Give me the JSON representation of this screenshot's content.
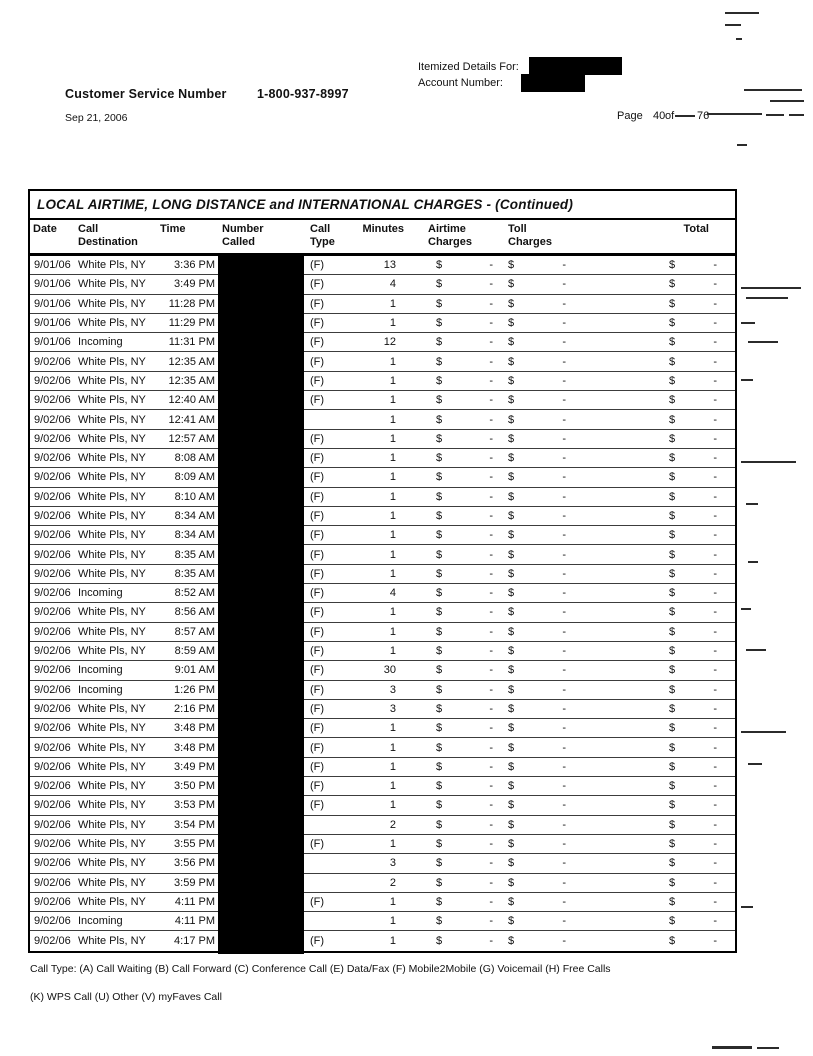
{
  "header": {
    "itemized_details_label": "Itemized Details For:",
    "account_number_label": "Account Number:",
    "customer_service_label": "Customer Service Number",
    "customer_service_number": "1-800-937-8997",
    "statement_date": "Sep 21, 2006",
    "page_label": "Page",
    "page_number": "40",
    "of_label": "of",
    "total_pages": "76"
  },
  "table": {
    "title": "LOCAL AIRTIME, LONG DISTANCE and INTERNATIONAL CHARGES  - (Continued)",
    "currency_symbol": "$",
    "no_charge_value": "-",
    "number_called_redacted": true,
    "columns": [
      {
        "line1": "Date",
        "line2": ""
      },
      {
        "line1": "Call",
        "line2": "Destination"
      },
      {
        "line1": "Time",
        "line2": ""
      },
      {
        "line1": "Number",
        "line2": "Called"
      },
      {
        "line1": "Call",
        "line2": "Type"
      },
      {
        "line1": "Minutes",
        "line2": ""
      },
      {
        "line1": "Airtime",
        "line2": "Charges"
      },
      {
        "line1": "Toll",
        "line2": "Charges"
      },
      {
        "line1": "Total",
        "line2": ""
      }
    ],
    "rows": [
      {
        "date": "9/01/06",
        "destination": "White Pls, NY",
        "time": "3:36 PM",
        "call_type": "(F)",
        "minutes": "13",
        "airtime": "-",
        "toll": "-",
        "total": "-"
      },
      {
        "date": "9/01/06",
        "destination": "White Pls, NY",
        "time": "3:49 PM",
        "call_type": "(F)",
        "minutes": "4",
        "airtime": "-",
        "toll": "-",
        "total": "-"
      },
      {
        "date": "9/01/06",
        "destination": "White Pls, NY",
        "time": "11:28 PM",
        "call_type": "(F)",
        "minutes": "1",
        "airtime": "-",
        "toll": "-",
        "total": "-"
      },
      {
        "date": "9/01/06",
        "destination": "White Pls, NY",
        "time": "11:29 PM",
        "call_type": "(F)",
        "minutes": "1",
        "airtime": "-",
        "toll": "-",
        "total": "-"
      },
      {
        "date": "9/01/06",
        "destination": "Incoming",
        "time": "11:31 PM",
        "call_type": "(F)",
        "minutes": "12",
        "airtime": "-",
        "toll": "-",
        "total": "-"
      },
      {
        "date": "9/02/06",
        "destination": "White Pls, NY",
        "time": "12:35 AM",
        "call_type": "(F)",
        "minutes": "1",
        "airtime": "-",
        "toll": "-",
        "total": "-"
      },
      {
        "date": "9/02/06",
        "destination": "White Pls, NY",
        "time": "12:35 AM",
        "call_type": "(F)",
        "minutes": "1",
        "airtime": "-",
        "toll": "-",
        "total": "-"
      },
      {
        "date": "9/02/06",
        "destination": "White Pls, NY",
        "time": "12:40 AM",
        "call_type": "(F)",
        "minutes": "1",
        "airtime": "-",
        "toll": "-",
        "total": "-"
      },
      {
        "date": "9/02/06",
        "destination": "White Pls, NY",
        "time": "12:41 AM",
        "call_type": "",
        "minutes": "1",
        "airtime": "-",
        "toll": "-",
        "total": "-"
      },
      {
        "date": "9/02/06",
        "destination": "White Pls, NY",
        "time": "12:57 AM",
        "call_type": "(F)",
        "minutes": "1",
        "airtime": "-",
        "toll": "-",
        "total": "-"
      },
      {
        "date": "9/02/06",
        "destination": "White Pls, NY",
        "time": "8:08 AM",
        "call_type": "(F)",
        "minutes": "1",
        "airtime": "-",
        "toll": "-",
        "total": "-"
      },
      {
        "date": "9/02/06",
        "destination": "White Pls, NY",
        "time": "8:09 AM",
        "call_type": "(F)",
        "minutes": "1",
        "airtime": "-",
        "toll": "-",
        "total": "-"
      },
      {
        "date": "9/02/06",
        "destination": "White Pls, NY",
        "time": "8:10 AM",
        "call_type": "(F)",
        "minutes": "1",
        "airtime": "-",
        "toll": "-",
        "total": "-"
      },
      {
        "date": "9/02/06",
        "destination": "White Pls, NY",
        "time": "8:34 AM",
        "call_type": "(F)",
        "minutes": "1",
        "airtime": "-",
        "toll": "-",
        "total": "-"
      },
      {
        "date": "9/02/06",
        "destination": "White Pls, NY",
        "time": "8:34 AM",
        "call_type": "(F)",
        "minutes": "1",
        "airtime": "-",
        "toll": "-",
        "total": "-"
      },
      {
        "date": "9/02/06",
        "destination": "White Pls, NY",
        "time": "8:35 AM",
        "call_type": "(F)",
        "minutes": "1",
        "airtime": "-",
        "toll": "-",
        "total": "-"
      },
      {
        "date": "9/02/06",
        "destination": "White Pls, NY",
        "time": "8:35 AM",
        "call_type": "(F)",
        "minutes": "1",
        "airtime": "-",
        "toll": "-",
        "total": "-"
      },
      {
        "date": "9/02/06",
        "destination": "Incoming",
        "time": "8:52 AM",
        "call_type": "(F)",
        "minutes": "4",
        "airtime": "-",
        "toll": "-",
        "total": "-"
      },
      {
        "date": "9/02/06",
        "destination": "White Pls, NY",
        "time": "8:56 AM",
        "call_type": "(F)",
        "minutes": "1",
        "airtime": "-",
        "toll": "-",
        "total": "-"
      },
      {
        "date": "9/02/06",
        "destination": "White Pls, NY",
        "time": "8:57 AM",
        "call_type": "(F)",
        "minutes": "1",
        "airtime": "-",
        "toll": "-",
        "total": "-"
      },
      {
        "date": "9/02/06",
        "destination": "White Pls, NY",
        "time": "8:59 AM",
        "call_type": "(F)",
        "minutes": "1",
        "airtime": "-",
        "toll": "-",
        "total": "-"
      },
      {
        "date": "9/02/06",
        "destination": "Incoming",
        "time": "9:01 AM",
        "call_type": "(F)",
        "minutes": "30",
        "airtime": "-",
        "toll": "-",
        "total": "-"
      },
      {
        "date": "9/02/06",
        "destination": "Incoming",
        "time": "1:26 PM",
        "call_type": "(F)",
        "minutes": "3",
        "airtime": "-",
        "toll": "-",
        "total": "-"
      },
      {
        "date": "9/02/06",
        "destination": "White Pls, NY",
        "time": "2:16 PM",
        "call_type": "(F)",
        "minutes": "3",
        "airtime": "-",
        "toll": "-",
        "total": "-"
      },
      {
        "date": "9/02/06",
        "destination": "White Pls, NY",
        "time": "3:48 PM",
        "call_type": "(F)",
        "minutes": "1",
        "airtime": "-",
        "toll": "-",
        "total": "-"
      },
      {
        "date": "9/02/06",
        "destination": "White Pls, NY",
        "time": "3:48 PM",
        "call_type": "(F)",
        "minutes": "1",
        "airtime": "-",
        "toll": "-",
        "total": "-"
      },
      {
        "date": "9/02/06",
        "destination": "White Pls, NY",
        "time": "3:49 PM",
        "call_type": "(F)",
        "minutes": "1",
        "airtime": "-",
        "toll": "-",
        "total": "-"
      },
      {
        "date": "9/02/06",
        "destination": "White Pls, NY",
        "time": "3:50 PM",
        "call_type": "(F)",
        "minutes": "1",
        "airtime": "-",
        "toll": "-",
        "total": "-"
      },
      {
        "date": "9/02/06",
        "destination": "White Pls, NY",
        "time": "3:53 PM",
        "call_type": "(F)",
        "minutes": "1",
        "airtime": "-",
        "toll": "-",
        "total": "-"
      },
      {
        "date": "9/02/06",
        "destination": "White Pls, NY",
        "time": "3:54 PM",
        "call_type": "",
        "minutes": "2",
        "airtime": "-",
        "toll": "-",
        "total": "-"
      },
      {
        "date": "9/02/06",
        "destination": "White Pls, NY",
        "time": "3:55 PM",
        "call_type": "(F)",
        "minutes": "1",
        "airtime": "-",
        "toll": "-",
        "total": "-"
      },
      {
        "date": "9/02/06",
        "destination": "White Pls, NY",
        "time": "3:56 PM",
        "call_type": "",
        "minutes": "3",
        "airtime": "-",
        "toll": "-",
        "total": "-"
      },
      {
        "date": "9/02/06",
        "destination": "White Pls, NY",
        "time": "3:59 PM",
        "call_type": "",
        "minutes": "2",
        "airtime": "-",
        "toll": "-",
        "total": "-"
      },
      {
        "date": "9/02/06",
        "destination": "White Pls, NY",
        "time": "4:11 PM",
        "call_type": "(F)",
        "minutes": "1",
        "airtime": "-",
        "toll": "-",
        "total": "-"
      },
      {
        "date": "9/02/06",
        "destination": "Incoming",
        "time": "4:11 PM",
        "call_type": "",
        "minutes": "1",
        "airtime": "-",
        "toll": "-",
        "total": "-"
      },
      {
        "date": "9/02/06",
        "destination": "White Pls, NY",
        "time": "4:17 PM",
        "call_type": "(F)",
        "minutes": "1",
        "airtime": "-",
        "toll": "-",
        "total": "-"
      }
    ]
  },
  "footer": {
    "legend_line1": "Call Type: (A) Call Waiting (B) Call Forward (C) Conference Call (E) Data/Fax (F) Mobile2Mobile (G) Voicemail (H) Free Calls",
    "legend_line2": "(K) WPS Call (U) Other (V) myFaves Call"
  }
}
